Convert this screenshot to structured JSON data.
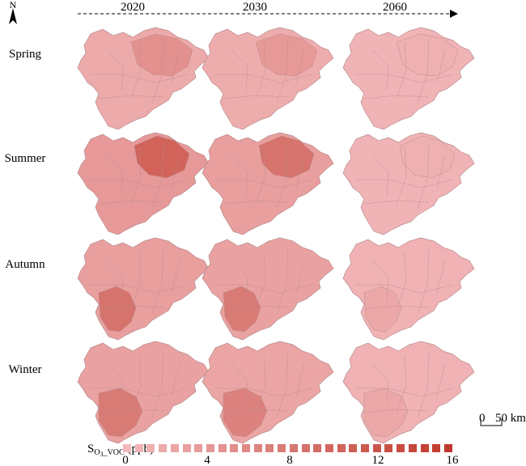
{
  "north_label": "N",
  "columns": [
    "2020",
    "2030",
    "2060"
  ],
  "rows": [
    "Spring",
    "Summer",
    "Autumn",
    "Winter"
  ],
  "legend": {
    "title_main": "S",
    "title_sub": "O",
    "title_subsub": "3",
    "title_sub_suffix": "_VOC",
    "title_unit": " (ppb)",
    "ticks": [
      "0",
      "4",
      "8",
      "12",
      "16"
    ],
    "min": 0,
    "max": 16,
    "steps": 28,
    "color_low": "#f2b8ba",
    "color_high": "#c0392b"
  },
  "scale": {
    "zero": "0",
    "distance": "50 km"
  },
  "map_colors": {
    "background_low": "#f3bcbe",
    "outline": "#b88a8c"
  },
  "intensity_note_levels": {
    "Spring": [
      5,
      4,
      1
    ],
    "Summer": [
      11,
      9,
      1
    ],
    "Autumn": [
      9,
      8,
      2
    ],
    "Winter": [
      8,
      7,
      2
    ]
  }
}
